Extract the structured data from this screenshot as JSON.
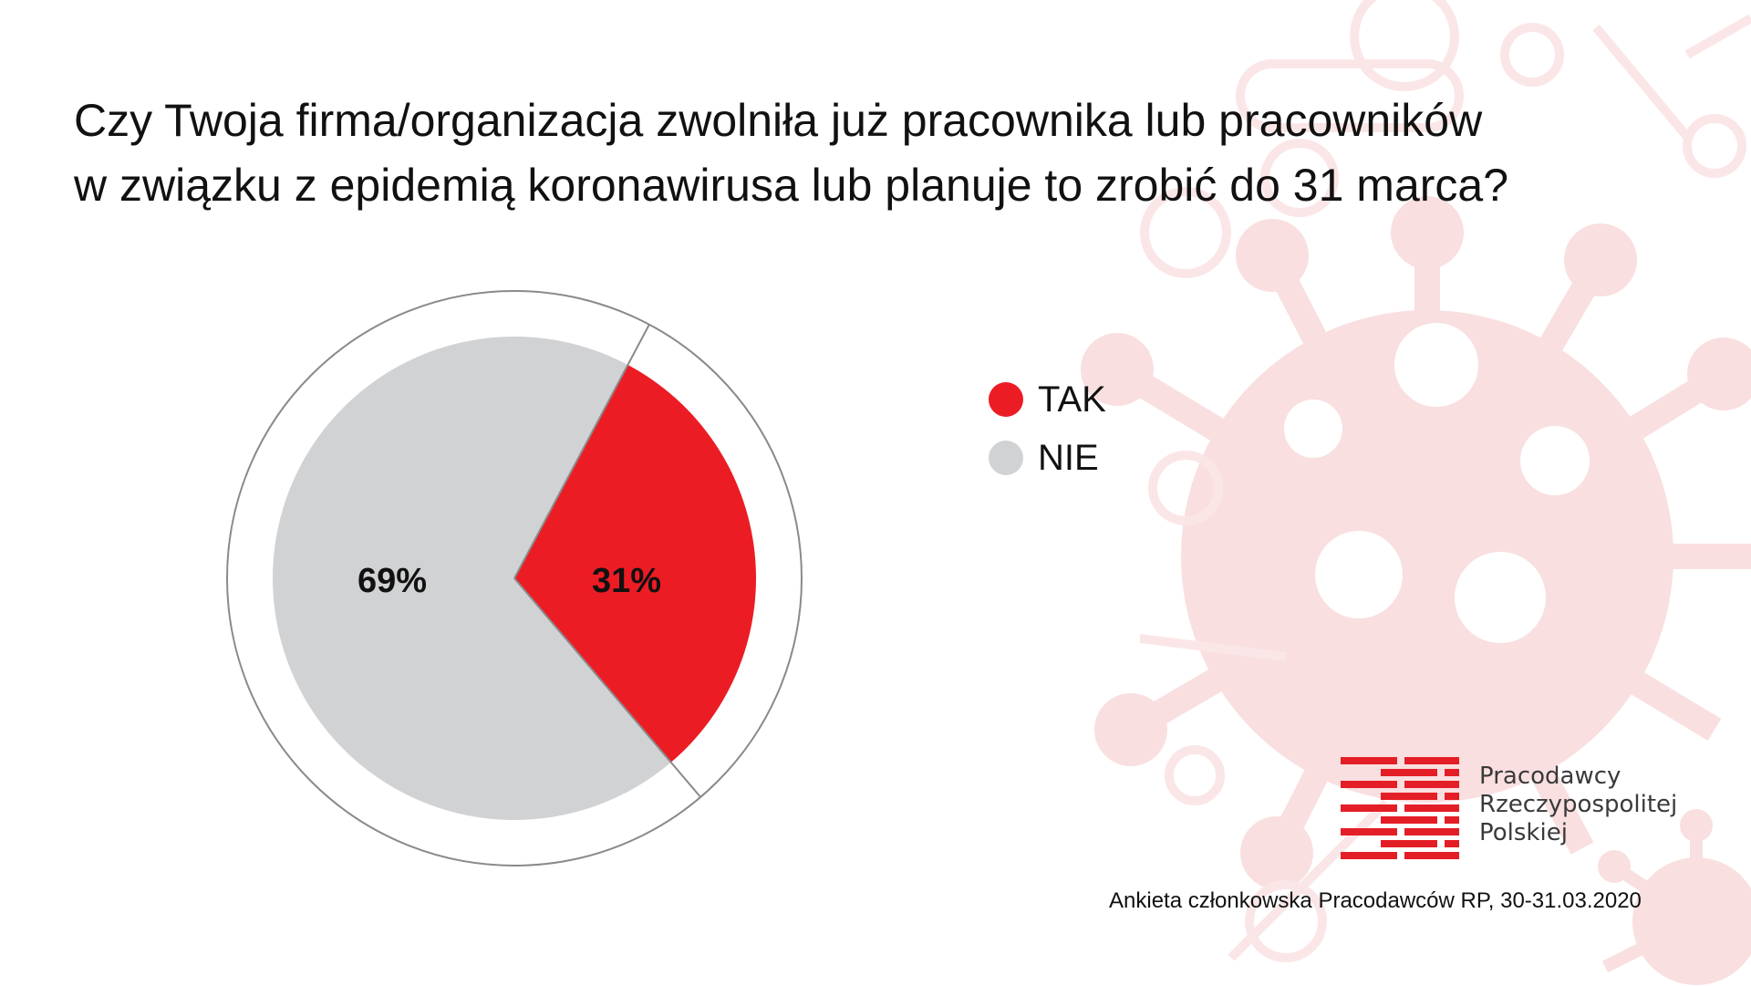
{
  "title": {
    "line1": "Czy Twoja firma/organizacja zwolniła już pracownika lub pracowników",
    "line2": "w związku z epidemią koronawirusa lub planuje to zrobić do 31 marca?"
  },
  "chart_data": {
    "type": "pie",
    "title": "Czy Twoja firma/organizacja zwolniła już pracownika lub pracowników w związku z epidemią koronawirusa lub planuje to zrobić do 31 marca?",
    "slices": [
      {
        "label": "TAK",
        "value": 31,
        "display": "31%",
        "color": "#ec1c24"
      },
      {
        "label": "NIE",
        "value": 69,
        "display": "69%",
        "color": "#d1d2d4"
      }
    ],
    "legend_position": "right"
  },
  "logo": {
    "line1": "Pracodawcy",
    "line2": "Rzeczypospolitej",
    "line3": "Polskiej",
    "color": "#e41e26"
  },
  "source": "Ankieta członkowska Pracodawców RP, 30-31.03.2020",
  "colors": {
    "accent": "#ec1c24",
    "neutral": "#d1d2d4",
    "decor": "#fbe3e4"
  }
}
